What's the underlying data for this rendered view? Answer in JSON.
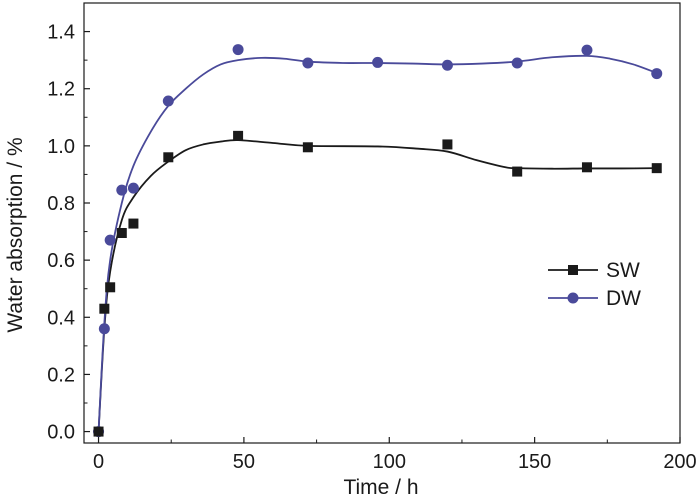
{
  "chart_data": {
    "type": "scatter",
    "title": "",
    "xlabel": "Time / h",
    "ylabel": "Water absorption / %",
    "xlim": [
      -5,
      200
    ],
    "ylim": [
      -0.04,
      1.5
    ],
    "xticks": [
      0,
      50,
      100,
      150,
      200
    ],
    "yticks": [
      0.0,
      0.2,
      0.4,
      0.6,
      0.8,
      1.0,
      1.2,
      1.4
    ],
    "xtick_labels": [
      "0",
      "50",
      "100",
      "150",
      "200"
    ],
    "ytick_labels": [
      "0.0",
      "0.2",
      "0.4",
      "0.6",
      "0.8",
      "1.0",
      "1.2",
      "1.4"
    ],
    "grid": false,
    "legend_position": "center-right",
    "series": [
      {
        "name": "SW",
        "marker": "square",
        "color": "#1a1a1a",
        "x": [
          0,
          2,
          4,
          8,
          12,
          24,
          48,
          72,
          120,
          144,
          168,
          192
        ],
        "y": [
          0.0,
          0.43,
          0.505,
          0.695,
          0.728,
          0.96,
          1.035,
          0.995,
          1.005,
          0.91,
          0.925,
          0.922
        ],
        "curve_x": [
          0,
          2,
          4,
          8,
          12,
          18,
          24,
          30,
          36,
          42,
          48,
          60,
          72,
          96,
          110,
          120,
          130,
          140,
          144,
          156,
          168,
          180,
          192
        ],
        "curve_y": [
          0.0,
          0.36,
          0.56,
          0.74,
          0.82,
          0.895,
          0.945,
          0.985,
          1.005,
          1.015,
          1.02,
          1.01,
          1.0,
          0.998,
          0.99,
          0.98,
          0.95,
          0.925,
          0.922,
          0.92,
          0.921,
          0.921,
          0.922
        ]
      },
      {
        "name": "DW",
        "marker": "circle",
        "color": "#4a4a9a",
        "x": [
          0,
          2,
          4,
          8,
          12,
          24,
          48,
          72,
          96,
          120,
          144,
          168,
          192
        ],
        "y": [
          0.0,
          0.36,
          0.67,
          0.845,
          0.852,
          1.157,
          1.337,
          1.29,
          1.292,
          1.282,
          1.29,
          1.335,
          1.253
        ],
        "curve_x": [
          0,
          2,
          4,
          8,
          12,
          18,
          24,
          30,
          36,
          42,
          48,
          56,
          64,
          72,
          84,
          96,
          108,
          120,
          132,
          144,
          156,
          168,
          176,
          184,
          192
        ],
        "curve_y": [
          0.0,
          0.38,
          0.6,
          0.8,
          0.93,
          1.05,
          1.14,
          1.2,
          1.25,
          1.285,
          1.3,
          1.308,
          1.305,
          1.295,
          1.29,
          1.29,
          1.288,
          1.285,
          1.288,
          1.295,
          1.31,
          1.315,
          1.305,
          1.285,
          1.255
        ]
      }
    ]
  }
}
